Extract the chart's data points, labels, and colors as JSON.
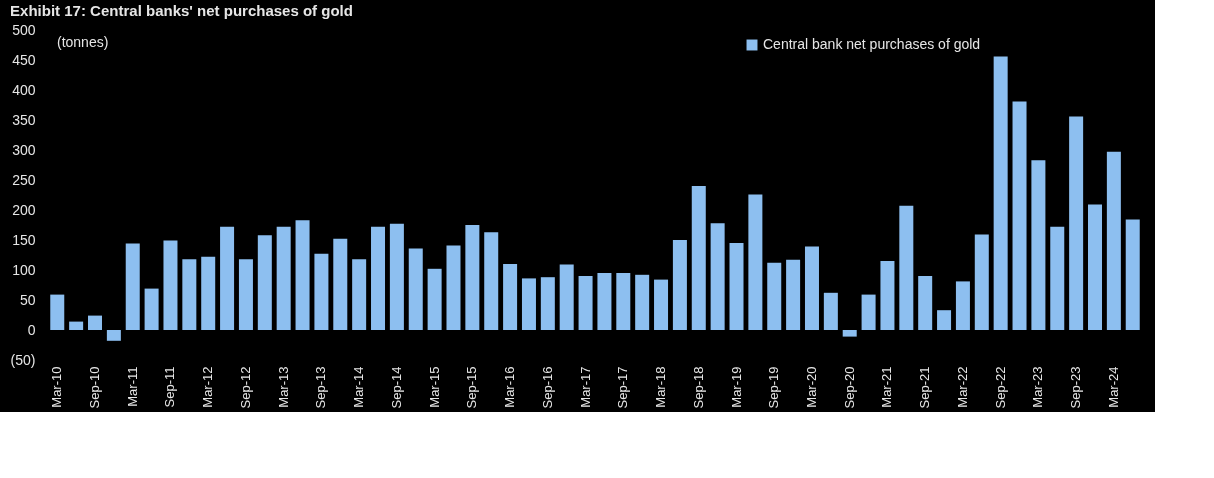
{
  "chart_data": {
    "type": "bar",
    "title": "Exhibit 17: Central banks' net purchases of gold",
    "annotations": [
      "(tonnes)"
    ],
    "categories": [
      "Mar-10",
      null,
      "Sep-10",
      null,
      "Mar-11",
      null,
      "Sep-11",
      null,
      "Mar-12",
      null,
      "Sep-12",
      null,
      "Mar-13",
      null,
      "Sep-13",
      null,
      "Mar-14",
      null,
      "Sep-14",
      null,
      "Mar-15",
      null,
      "Sep-15",
      null,
      "Mar-16",
      null,
      "Sep-16",
      null,
      "Mar-17",
      null,
      "Sep-17",
      null,
      "Mar-18",
      null,
      "Sep-18",
      null,
      "Mar-19",
      null,
      "Sep-19",
      null,
      "Mar-20",
      null,
      "Sep-20",
      null,
      "Mar-21",
      null,
      "Sep-21",
      null,
      "Mar-22",
      null,
      "Sep-22",
      null,
      "Mar-23",
      null,
      "Sep-23",
      null,
      "Mar-24",
      null
    ],
    "series": [
      {
        "name": "Central bank net purchases of gold",
        "color": "#8dbff0",
        "values": [
          59,
          14,
          24,
          -18,
          144,
          69,
          149,
          118,
          122,
          172,
          118,
          158,
          172,
          183,
          127,
          152,
          118,
          172,
          177,
          136,
          102,
          141,
          175,
          163,
          110,
          86,
          88,
          109,
          90,
          95,
          95,
          92,
          84,
          150,
          240,
          178,
          145,
          226,
          112,
          117,
          139,
          62,
          -11,
          59,
          115,
          207,
          90,
          33,
          81,
          159,
          456,
          381,
          283,
          172,
          356,
          209,
          297,
          184
        ]
      }
    ],
    "ylim": [
      -50,
      500
    ],
    "yticks": [
      {
        "value": -50,
        "label": "(50)"
      },
      0,
      50,
      100,
      150,
      200,
      250,
      300,
      350,
      400,
      450,
      500
    ],
    "grid": false,
    "legend": "top right"
  }
}
